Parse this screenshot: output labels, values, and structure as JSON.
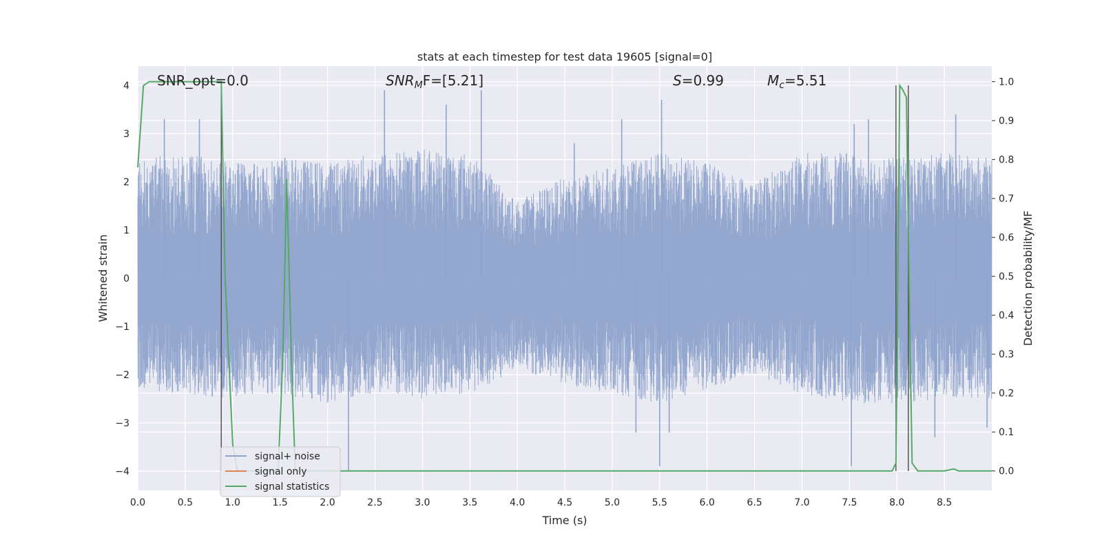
{
  "chart_data": {
    "type": "line",
    "title": "stats at each timestep for test data 19605 [signal=0]",
    "xlabel": "Time (s)",
    "ylabel_left": "Whitened strain",
    "ylabel_right": "Detection probability/MF",
    "xlim": [
      0.0,
      9.0
    ],
    "ylim_left": [
      -4.4,
      4.4
    ],
    "ylim_right": [
      -0.05,
      1.04
    ],
    "x_ticks": [
      "0.0",
      "0.5",
      "1.0",
      "1.5",
      "2.0",
      "2.5",
      "3.0",
      "3.5",
      "4.0",
      "4.5",
      "5.0",
      "5.5",
      "6.0",
      "6.5",
      "7.0",
      "7.5",
      "8.0",
      "8.5"
    ],
    "y_left_ticks": [
      "4",
      "3",
      "2",
      "1",
      "0",
      "−1",
      "−2",
      "−3",
      "−4"
    ],
    "y_right_ticks": [
      "1.0",
      "0.9",
      "0.8",
      "0.7",
      "0.6",
      "0.5",
      "0.4",
      "0.3",
      "0.2",
      "0.1",
      "0.0"
    ],
    "grid": true,
    "annotations": {
      "snr_opt": "SNR_opt=0.0",
      "snr_mf_sym": "SNR",
      "snr_mf_sub": "M",
      "snr_mf_rest": "F=[5.21]",
      "s_sym": "S",
      "s_rest": "=0.99",
      "mc_sym": "M",
      "mc_sub": "c",
      "mc_rest": "=5.51"
    },
    "legend": {
      "placement": "lower-left",
      "entries": [
        "signal+ noise",
        "signal only",
        "signal statistics"
      ]
    },
    "colors": {
      "noise": "#8fa3cc",
      "signal_only": "#dd8452",
      "statistics": "#55a868",
      "vlines": "#4c4c4c",
      "background": "#eaeaf2",
      "grid": "#ffffff"
    },
    "series": [
      {
        "name": "signal+ noise",
        "envelope": {
          "x": [
            0.0,
            0.5,
            1.0,
            1.5,
            2.0,
            2.5,
            3.0,
            3.5,
            4.0,
            4.5,
            5.0,
            5.5,
            6.0,
            6.5,
            7.0,
            7.5,
            8.0,
            8.5,
            9.0
          ],
          "typical_upper": [
            2.5,
            2.6,
            2.4,
            2.5,
            2.4,
            2.6,
            2.7,
            2.6,
            1.6,
            2.1,
            2.3,
            2.6,
            2.4,
            2.0,
            2.6,
            2.6,
            2.5,
            2.6,
            2.5
          ],
          "typical_lower": [
            -2.3,
            -2.4,
            -2.5,
            -2.4,
            -2.6,
            -2.4,
            -2.5,
            -2.4,
            -1.9,
            -2.2,
            -2.4,
            -2.6,
            -2.3,
            -2.0,
            -2.4,
            -2.6,
            -2.6,
            -2.5,
            -2.5
          ]
        },
        "peaks": [
          [
            0.28,
            3.3
          ],
          [
            0.65,
            3.3
          ],
          [
            1.55,
            2.5
          ],
          [
            2.22,
            -4.0
          ],
          [
            2.6,
            3.9
          ],
          [
            3.25,
            3.6
          ],
          [
            3.62,
            3.9
          ],
          [
            4.6,
            2.8
          ],
          [
            5.1,
            3.3
          ],
          [
            5.25,
            -3.2
          ],
          [
            5.5,
            -3.9
          ],
          [
            5.52,
            3.7
          ],
          [
            5.6,
            -3.2
          ],
          [
            7.7,
            3.3
          ],
          [
            7.52,
            -3.9
          ],
          [
            7.55,
            3.2
          ],
          [
            8.4,
            -3.3
          ],
          [
            8.62,
            3.4
          ],
          [
            8.95,
            -3.1
          ]
        ]
      },
      {
        "name": "signal statistics",
        "x": [
          0.0,
          0.06,
          0.12,
          0.2,
          0.6,
          0.8,
          0.88,
          0.92,
          1.0,
          1.05,
          1.48,
          1.53,
          1.57,
          1.62,
          1.66,
          1.7,
          2.0,
          4.0,
          6.0,
          7.95,
          7.99,
          8.03,
          8.06,
          8.1,
          8.13,
          8.16,
          8.22,
          8.3,
          8.5,
          8.6,
          8.65,
          8.7,
          9.0
        ],
        "y": [
          0.78,
          0.99,
          1.0,
          1.0,
          1.0,
          1.0,
          1.0,
          0.5,
          0.07,
          0.0,
          0.0,
          0.3,
          0.75,
          0.28,
          0.0,
          0.0,
          0.0,
          0.0,
          0.0,
          0.0,
          0.02,
          0.99,
          0.98,
          0.96,
          0.46,
          0.02,
          0.0,
          0.0,
          0.0,
          0.005,
          0.0,
          0.0,
          0.0
        ]
      }
    ],
    "vlines_x": [
      0.88,
      7.99,
      8.12
    ]
  }
}
